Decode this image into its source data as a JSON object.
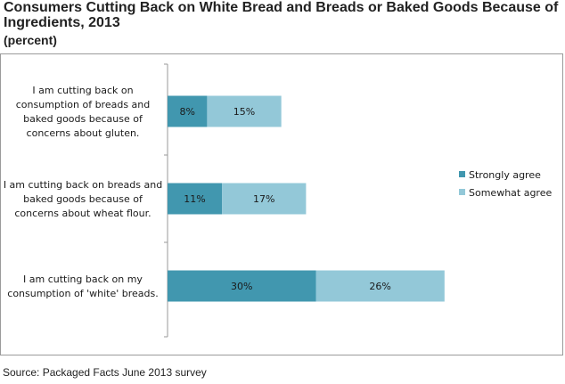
{
  "title_lines": [
    "Consumers Cutting Back on White Bread and Breads or Baked Goods Because of",
    "Ingredients, 2013"
  ],
  "subtitle": "(percent)",
  "source": "Source:  Packaged Facts June 2013 survey",
  "chart_data": {
    "type": "bar",
    "orientation": "horizontal",
    "stacked": true,
    "categories": [
      [
        "I am cutting back on",
        "consumption of breads and",
        "baked goods because of",
        "concerns about gluten."
      ],
      [
        "I am cutting back on breads and",
        "baked goods because of",
        "concerns about wheat flour."
      ],
      [
        "I am cutting back on my",
        "consumption of 'white' breads."
      ]
    ],
    "series": [
      {
        "name": "Strongly agree",
        "values": [
          8,
          11,
          30
        ],
        "labels": [
          "8%",
          "11%",
          "30%"
        ],
        "color": "#4197af"
      },
      {
        "name": "Somewhat agree",
        "values": [
          15,
          17,
          26
        ],
        "labels": [
          "15%",
          "17%",
          "26%"
        ],
        "color": "#93c8d8"
      }
    ],
    "xlim": [
      0,
      85
    ],
    "legend_position": "right",
    "grid": false
  }
}
